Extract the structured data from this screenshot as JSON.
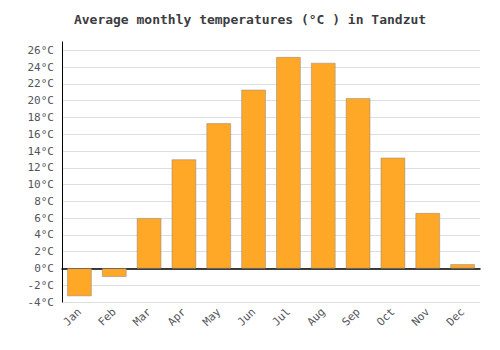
{
  "chart_data": {
    "type": "bar",
    "title": "Average monthly temperatures (°C ) in Tandzut",
    "categories": [
      "Jan",
      "Feb",
      "Mar",
      "Apr",
      "May",
      "Jun",
      "Jul",
      "Aug",
      "Sep",
      "Oct",
      "Nov",
      "Dec"
    ],
    "values": [
      -3.3,
      -1.0,
      6.0,
      13.0,
      17.3,
      21.3,
      25.2,
      24.5,
      20.3,
      13.2,
      6.6,
      0.5
    ],
    "color": "#FFA726",
    "ylim": [
      -4,
      27
    ],
    "yticks": [
      {
        "value": -4,
        "label": "-4°C"
      },
      {
        "value": -2,
        "label": "-2°C"
      },
      {
        "value": 0,
        "label": "0°C"
      },
      {
        "value": 2,
        "label": "2°C"
      },
      {
        "value": 4,
        "label": "4°C"
      },
      {
        "value": 6,
        "label": "6°C"
      },
      {
        "value": 8,
        "label": "8°C"
      },
      {
        "value": 10,
        "label": "10°C"
      },
      {
        "value": 12,
        "label": "12°C"
      },
      {
        "value": 14,
        "label": "14°C"
      },
      {
        "value": 16,
        "label": "16°C"
      },
      {
        "value": 18,
        "label": "18°C"
      },
      {
        "value": 20,
        "label": "20°C"
      },
      {
        "value": 22,
        "label": "22°C"
      },
      {
        "value": 24,
        "label": "24°C"
      },
      {
        "value": 26,
        "label": "26°C"
      }
    ],
    "grid": true
  }
}
